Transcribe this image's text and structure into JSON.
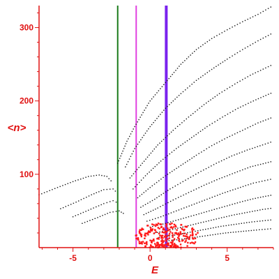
{
  "chart_data": {
    "type": "scatter",
    "xlabel": "E",
    "ylabel": "<n>",
    "xlim": [
      -7.2,
      8.0
    ],
    "ylim": [
      0,
      330
    ],
    "x_ticks": [
      -5,
      0,
      5
    ],
    "y_ticks": [
      100,
      200,
      300
    ],
    "x_tick_labels": [
      "-5",
      "0",
      "5"
    ],
    "y_tick_labels": [
      "100",
      "200",
      "300"
    ],
    "grid": false,
    "legend": "none",
    "colors": {
      "axes": "#e01010",
      "points": "#111111",
      "highlight_points": "#ff1a1a"
    },
    "vertical_lines": [
      {
        "x": -2.1,
        "color": "#1a7a1a"
      },
      {
        "x": -0.9,
        "color": "#e040e0"
      },
      {
        "x": 1.05,
        "color": "#7a22ee"
      }
    ],
    "series": [
      {
        "color": "#111111",
        "kind": "dotted-lines",
        "curves": [
          {
            "points": [
              [
                -7.2,
                72
              ],
              [
                -6,
                82
              ],
              [
                -5,
                90
              ],
              [
                -4,
                97
              ],
              [
                -3.3,
                99
              ],
              [
                -2.8,
                97
              ],
              [
                -2.4,
                88
              ]
            ]
          },
          {
            "points": [
              [
                -5.8,
                53
              ],
              [
                -4.8,
                62
              ],
              [
                -3.8,
                72
              ],
              [
                -3.0,
                79
              ],
              [
                -2.4,
                80
              ],
              [
                -2.1,
                74
              ]
            ]
          },
          {
            "points": [
              [
                -5.0,
                42
              ],
              [
                -4.0,
                51
              ],
              [
                -3.0,
                60
              ],
              [
                -2.4,
                64
              ],
              [
                -2.0,
                60
              ]
            ]
          },
          {
            "points": [
              [
                -4.4,
                33
              ],
              [
                -3.4,
                41
              ],
              [
                -2.6,
                48
              ],
              [
                -2.0,
                50
              ],
              [
                -1.6,
                45
              ]
            ]
          },
          {
            "points": [
              [
                -2.1,
                115
              ],
              [
                -1.5,
                145
              ],
              [
                -1.0,
                165
              ],
              [
                0.0,
                200
              ],
              [
                1.0,
                225
              ],
              [
                2.0,
                250
              ],
              [
                3.0,
                270
              ],
              [
                4.0,
                285
              ],
              [
                5.0,
                297
              ],
              [
                6.0,
                308
              ],
              [
                7.0,
                318
              ],
              [
                8.0,
                330
              ]
            ]
          },
          {
            "points": [
              [
                -1.6,
                110
              ],
              [
                -1.0,
                135
              ],
              [
                0.0,
                165
              ],
              [
                1.0,
                190
              ],
              [
                2.0,
                210
              ],
              [
                3.0,
                228
              ],
              [
                4.0,
                243
              ],
              [
                5.0,
                257
              ],
              [
                6.0,
                270
              ],
              [
                7.0,
                282
              ],
              [
                8.0,
                293
              ]
            ]
          },
          {
            "points": [
              [
                -1.3,
                95
              ],
              [
                -0.5,
                115
              ],
              [
                0.5,
                140
              ],
              [
                1.5,
                160
              ],
              [
                2.5,
                178
              ],
              [
                3.5,
                195
              ],
              [
                4.5,
                210
              ],
              [
                5.5,
                223
              ],
              [
                6.5,
                235
              ],
              [
                8.0,
                250
              ]
            ]
          },
          {
            "points": [
              [
                -1.1,
                80
              ],
              [
                -0.3,
                98
              ],
              [
                0.7,
                118
              ],
              [
                1.7,
                135
              ],
              [
                2.7,
                150
              ],
              [
                3.7,
                165
              ],
              [
                4.7,
                178
              ],
              [
                5.7,
                190
              ],
              [
                6.7,
                200
              ],
              [
                8.0,
                212
              ]
            ]
          },
          {
            "points": [
              [
                -0.8,
                68
              ],
              [
                0.0,
                82
              ],
              [
                1.0,
                98
              ],
              [
                2.0,
                112
              ],
              [
                3.0,
                126
              ],
              [
                4.0,
                139
              ],
              [
                5.0,
                150
              ],
              [
                6.0,
                160
              ],
              [
                7.0,
                170
              ],
              [
                8.0,
                178
              ]
            ]
          },
          {
            "points": [
              [
                -0.6,
                55
              ],
              [
                0.3,
                66
              ],
              [
                1.3,
                80
              ],
              [
                2.3,
                92
              ],
              [
                3.3,
                104
              ],
              [
                4.3,
                115
              ],
              [
                5.3,
                125
              ],
              [
                6.3,
                133
              ],
              [
                7.3,
                140
              ],
              [
                8.0,
                145
              ]
            ]
          },
          {
            "points": [
              [
                -0.4,
                45
              ],
              [
                0.5,
                54
              ],
              [
                1.5,
                65
              ],
              [
                2.5,
                75
              ],
              [
                3.5,
                85
              ],
              [
                4.5,
                94
              ],
              [
                5.5,
                102
              ],
              [
                6.5,
                110
              ],
              [
                8.0,
                118
              ]
            ]
          },
          {
            "points": [
              [
                -0.2,
                36
              ],
              [
                0.7,
                42
              ],
              [
                1.7,
                50
              ],
              [
                2.7,
                58
              ],
              [
                3.7,
                66
              ],
              [
                4.7,
                74
              ],
              [
                5.7,
                81
              ],
              [
                6.7,
                88
              ],
              [
                8.0,
                94
              ]
            ]
          },
          {
            "points": [
              [
                0.0,
                28
              ],
              [
                1.0,
                33
              ],
              [
                2.0,
                39
              ],
              [
                3.0,
                45
              ],
              [
                4.0,
                51
              ],
              [
                5.0,
                57
              ],
              [
                6.0,
                63
              ],
              [
                7.0,
                68
              ],
              [
                8.0,
                72
              ]
            ]
          },
          {
            "points": [
              [
                0.3,
                20
              ],
              [
                1.3,
                24
              ],
              [
                2.3,
                29
              ],
              [
                3.3,
                34
              ],
              [
                4.3,
                39
              ],
              [
                5.3,
                44
              ],
              [
                6.3,
                48
              ],
              [
                7.3,
                52
              ],
              [
                8.0,
                54
              ]
            ]
          },
          {
            "points": [
              [
                0.6,
                14
              ],
              [
                1.6,
                17
              ],
              [
                2.6,
                21
              ],
              [
                3.6,
                25
              ],
              [
                4.6,
                29
              ],
              [
                5.6,
                32
              ],
              [
                6.6,
                35
              ],
              [
                8.0,
                38
              ]
            ]
          },
          {
            "points": [
              [
                0.9,
                9
              ],
              [
                1.9,
                11
              ],
              [
                2.9,
                14
              ],
              [
                3.9,
                17
              ],
              [
                4.9,
                20
              ],
              [
                5.9,
                22
              ],
              [
                6.9,
                24
              ],
              [
                8.0,
                26
              ]
            ]
          }
        ]
      },
      {
        "color": "#ff1a1a",
        "kind": "cluster",
        "center": [
          1.1,
          15
        ],
        "spread": [
          1.6,
          12
        ]
      }
    ]
  }
}
